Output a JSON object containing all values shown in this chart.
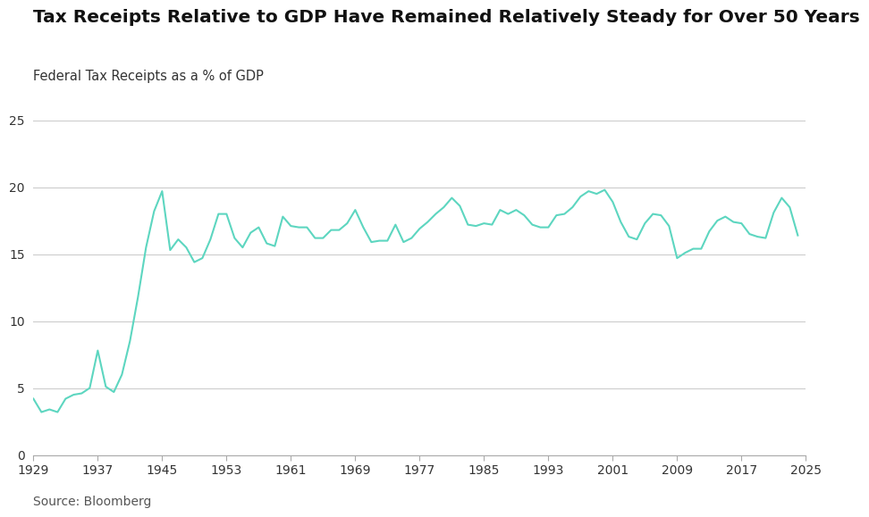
{
  "title": "Tax Receipts Relative to GDP Have Remained Relatively Steady for Over 50 Years",
  "subtitle": "Federal Tax Receipts as a % of GDP",
  "source": "Source: Bloomberg",
  "line_color": "#5dd6c0",
  "background_color": "#ffffff",
  "grid_color": "#cccccc",
  "title_fontsize": 14.5,
  "subtitle_fontsize": 10.5,
  "source_fontsize": 10,
  "tick_fontsize": 10,
  "ylim": [
    0,
    25
  ],
  "yticks": [
    0,
    5,
    10,
    15,
    20,
    25
  ],
  "xticks": [
    1929,
    1937,
    1945,
    1953,
    1961,
    1969,
    1977,
    1985,
    1993,
    2001,
    2009,
    2017,
    2025
  ],
  "xlim": [
    1929,
    2025
  ],
  "years": [
    1929,
    1930,
    1931,
    1932,
    1933,
    1934,
    1935,
    1936,
    1937,
    1938,
    1939,
    1940,
    1941,
    1942,
    1943,
    1944,
    1945,
    1946,
    1947,
    1948,
    1949,
    1950,
    1951,
    1952,
    1953,
    1954,
    1955,
    1956,
    1957,
    1958,
    1959,
    1960,
    1961,
    1962,
    1963,
    1964,
    1965,
    1966,
    1967,
    1968,
    1969,
    1970,
    1971,
    1972,
    1973,
    1974,
    1975,
    1976,
    1977,
    1978,
    1979,
    1980,
    1981,
    1982,
    1983,
    1984,
    1985,
    1986,
    1987,
    1988,
    1989,
    1990,
    1991,
    1992,
    1993,
    1994,
    1995,
    1996,
    1997,
    1998,
    1999,
    2000,
    2001,
    2002,
    2003,
    2004,
    2005,
    2006,
    2007,
    2008,
    2009,
    2010,
    2011,
    2012,
    2013,
    2014,
    2015,
    2016,
    2017,
    2018,
    2019,
    2020,
    2021,
    2022,
    2023,
    2024
  ],
  "values": [
    4.2,
    3.2,
    3.4,
    3.2,
    4.2,
    4.5,
    4.6,
    5.0,
    7.8,
    5.1,
    4.7,
    6.0,
    8.5,
    11.8,
    15.5,
    18.2,
    19.7,
    15.3,
    16.1,
    15.5,
    14.4,
    14.7,
    16.1,
    18.0,
    18.0,
    16.2,
    15.5,
    16.6,
    17.0,
    15.8,
    15.6,
    17.8,
    17.1,
    17.0,
    17.0,
    16.2,
    16.2,
    16.8,
    16.8,
    17.3,
    18.3,
    17.0,
    15.9,
    16.0,
    16.0,
    17.2,
    15.9,
    16.2,
    16.9,
    17.4,
    18.0,
    18.5,
    19.2,
    18.6,
    17.2,
    17.1,
    17.3,
    17.2,
    18.3,
    18.0,
    18.3,
    17.9,
    17.2,
    17.0,
    17.0,
    17.9,
    18.0,
    18.5,
    19.3,
    19.7,
    19.5,
    19.8,
    18.9,
    17.4,
    16.3,
    16.1,
    17.3,
    18.0,
    17.9,
    17.1,
    14.7,
    15.1,
    15.4,
    15.4,
    16.7,
    17.5,
    17.8,
    17.4,
    17.3,
    16.5,
    16.3,
    16.2,
    18.1,
    19.2,
    18.5,
    16.4
  ]
}
